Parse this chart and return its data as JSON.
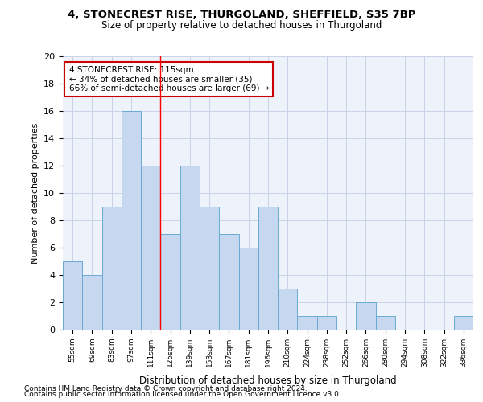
{
  "title1": "4, STONECREST RISE, THURGOLAND, SHEFFIELD, S35 7BP",
  "title2": "Size of property relative to detached houses in Thurgoland",
  "xlabel": "Distribution of detached houses by size in Thurgoland",
  "ylabel": "Number of detached properties",
  "footnote1": "Contains HM Land Registry data © Crown copyright and database right 2024.",
  "footnote2": "Contains public sector information licensed under the Open Government Licence v3.0.",
  "bar_labels": [
    "55sqm",
    "69sqm",
    "83sqm",
    "97sqm",
    "111sqm",
    "125sqm",
    "139sqm",
    "153sqm",
    "167sqm",
    "181sqm",
    "196sqm",
    "210sqm",
    "224sqm",
    "238sqm",
    "252sqm",
    "266sqm",
    "280sqm",
    "294sqm",
    "308sqm",
    "322sqm",
    "336sqm"
  ],
  "bar_values": [
    5,
    4,
    9,
    16,
    12,
    7,
    12,
    9,
    7,
    6,
    9,
    3,
    1,
    1,
    0,
    2,
    1,
    0,
    0,
    0,
    1
  ],
  "bar_color": "#c5d8f0",
  "bar_edgecolor": "#6aaad4",
  "grid_color": "#c8d4e8",
  "background_color": "#eef2fb",
  "annotation_line1": "4 STONECREST RISE: 115sqm",
  "annotation_line2": "← 34% of detached houses are smaller (35)",
  "annotation_line3": "66% of semi-detached houses are larger (69) →",
  "annotation_box_edgecolor": "#cc0000",
  "property_line_x": 4.5,
  "ylim": [
    0,
    20
  ],
  "yticks": [
    0,
    2,
    4,
    6,
    8,
    10,
    12,
    14,
    16,
    18,
    20
  ]
}
